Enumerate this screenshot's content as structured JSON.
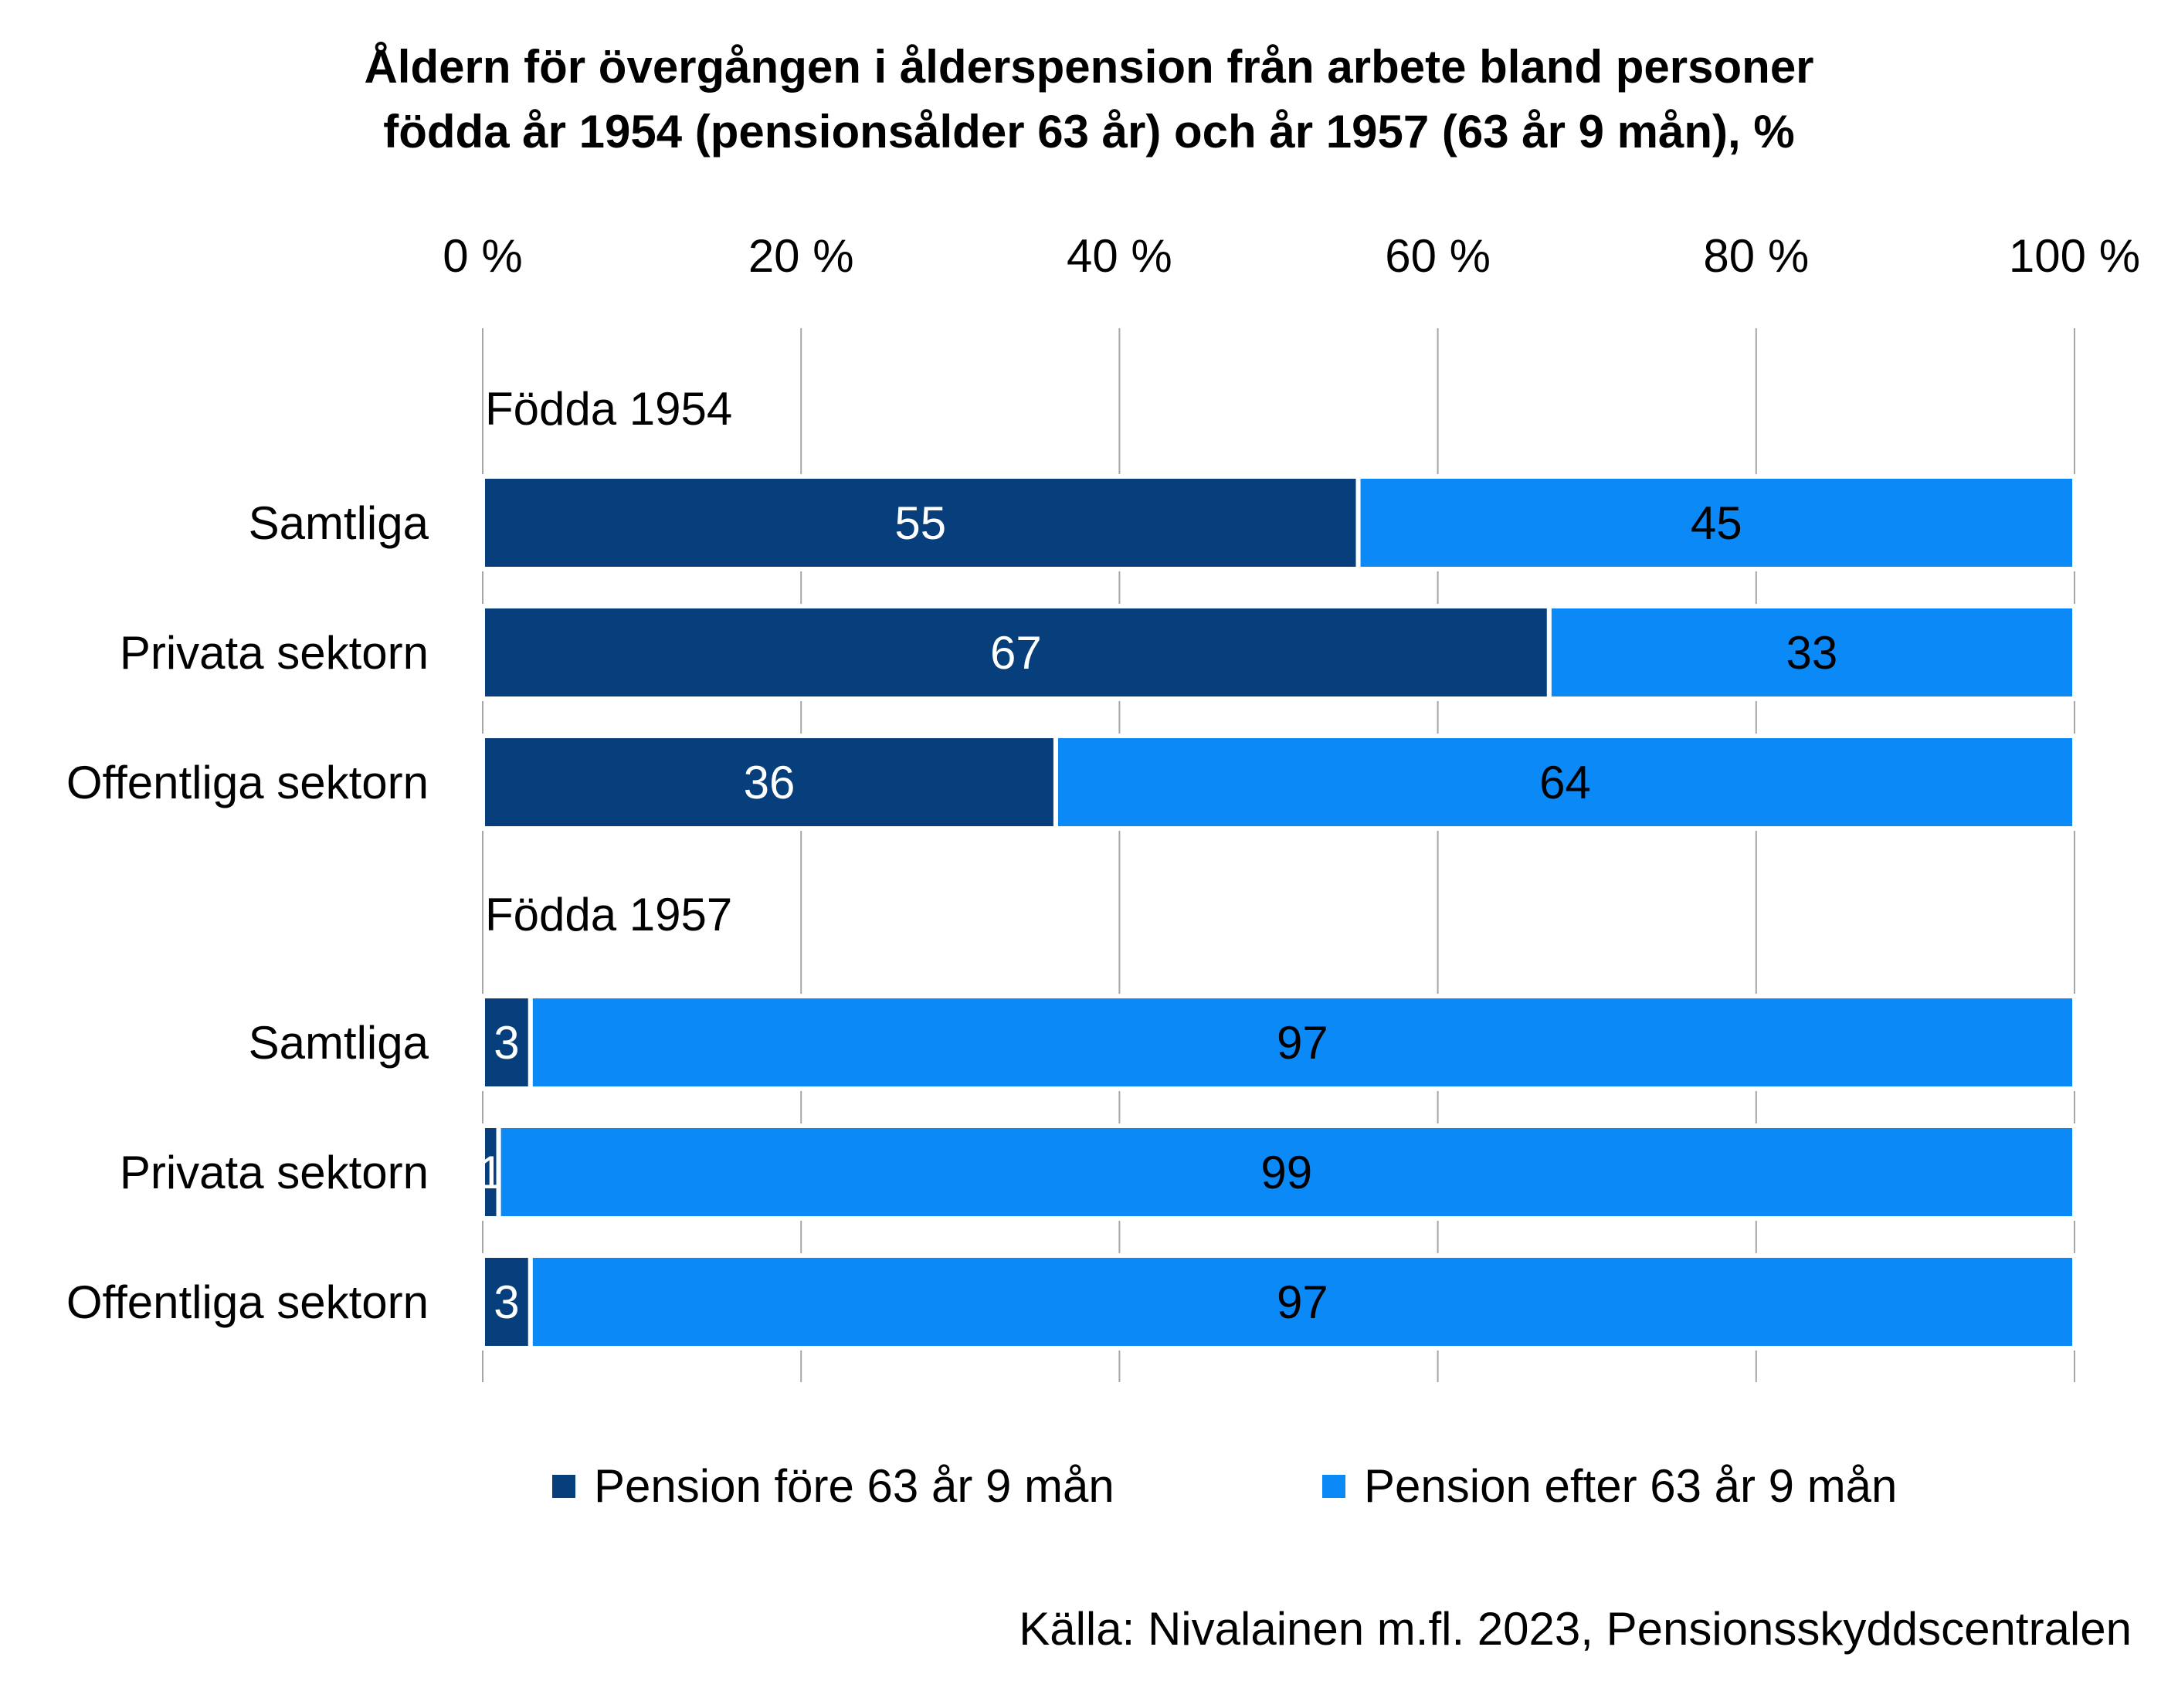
{
  "title_lines": [
    "Åldern för övergången i ålderspension från arbete bland personer",
    "födda år 1954 (pensionsålder 63 år) och år 1957 (63 år 9 mån), %"
  ],
  "source": "Källa: Nivalainen m.fl. 2023, Pensionsskyddscentralen",
  "colors": {
    "before": "#063f7b",
    "after": "#0a89f7"
  },
  "chart_data": {
    "type": "bar",
    "orientation": "horizontal",
    "stacked": true,
    "xlim": [
      0,
      100
    ],
    "x_ticks": [
      "0 %",
      "20 %",
      "40 %",
      "60 %",
      "80 %",
      "100 %"
    ],
    "grid": true,
    "legend_position": "bottom",
    "groups": [
      {
        "label": "Födda 1954",
        "categories": [
          "Samtliga",
          "Privata sektorn",
          "Offentliga sektorn"
        ],
        "series": [
          {
            "name": "Pension före 63 år 9 mån",
            "values": [
              55,
              67,
              36
            ]
          },
          {
            "name": "Pension efter 63 år 9 mån",
            "values": [
              45,
              33,
              64
            ]
          }
        ]
      },
      {
        "label": "Födda 1957",
        "categories": [
          "Samtliga",
          "Privata sektorn",
          "Offentliga sektorn"
        ],
        "series": [
          {
            "name": "Pension före 63 år 9 mån",
            "values": [
              3,
              1,
              3
            ]
          },
          {
            "name": "Pension efter 63 år 9 mån",
            "values": [
              97,
              99,
              97
            ]
          }
        ]
      }
    ]
  }
}
